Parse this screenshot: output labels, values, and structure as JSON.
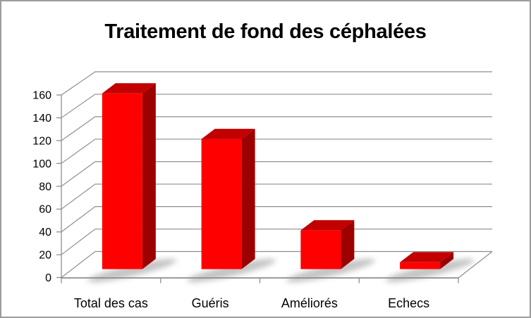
{
  "window": {
    "background": "#ffffff",
    "border_color": "#9c9c9c"
  },
  "chart_data": {
    "type": "bar",
    "variant": "3d-column",
    "title": "Traitement de fond des céphalées",
    "categories": [
      "Total des cas",
      "Guéris",
      "Améliorés",
      "Echecs"
    ],
    "values": [
      154,
      114,
      34,
      6
    ],
    "xlabel": "",
    "ylabel": "",
    "ylim": [
      0,
      160
    ],
    "ytick_step": 20,
    "yticks": [
      0,
      20,
      40,
      60,
      80,
      100,
      120,
      140,
      160
    ],
    "grid": true,
    "legend": "none",
    "colors": {
      "bar_front": "#fe0000",
      "bar_top": "#c30000",
      "bar_side": "#9d0000",
      "grid": "#8e8e8e",
      "axis": "#8e8e8e",
      "text": "#000000",
      "shadow": "#8a8a8a"
    }
  }
}
